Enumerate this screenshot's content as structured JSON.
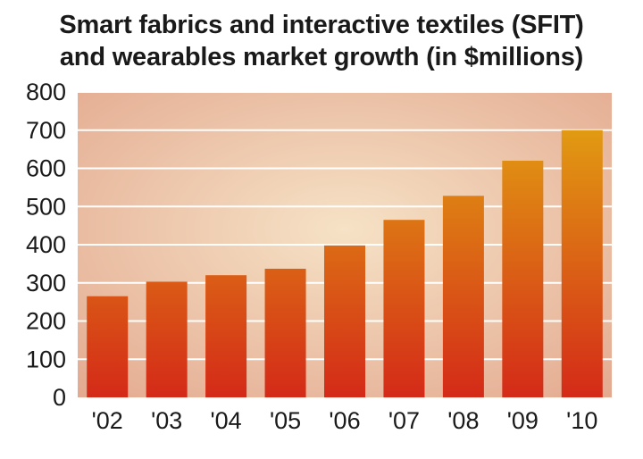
{
  "chart_data": {
    "type": "bar",
    "title": "Smart fabrics and interactive textiles (SFIT)",
    "subtitle": "and wearables market growth (in $millions)",
    "categories": [
      "'02",
      "'03",
      "'04",
      "'05",
      "'06",
      "'07",
      "'08",
      "'09",
      "'10"
    ],
    "values": [
      265,
      303,
      320,
      337,
      398,
      465,
      528,
      620,
      700
    ],
    "ylim": [
      0,
      800
    ],
    "yticks": [
      0,
      100,
      200,
      300,
      400,
      500,
      600,
      700,
      800
    ],
    "grid": true,
    "legend": "none",
    "colors": {
      "bar_top": "#e2a012",
      "bar_bottom": "#d42a18",
      "plot_bg_light": "#f6e2c6",
      "plot_bg_dark": "#e3a98f",
      "grid": "#ffffff"
    }
  }
}
